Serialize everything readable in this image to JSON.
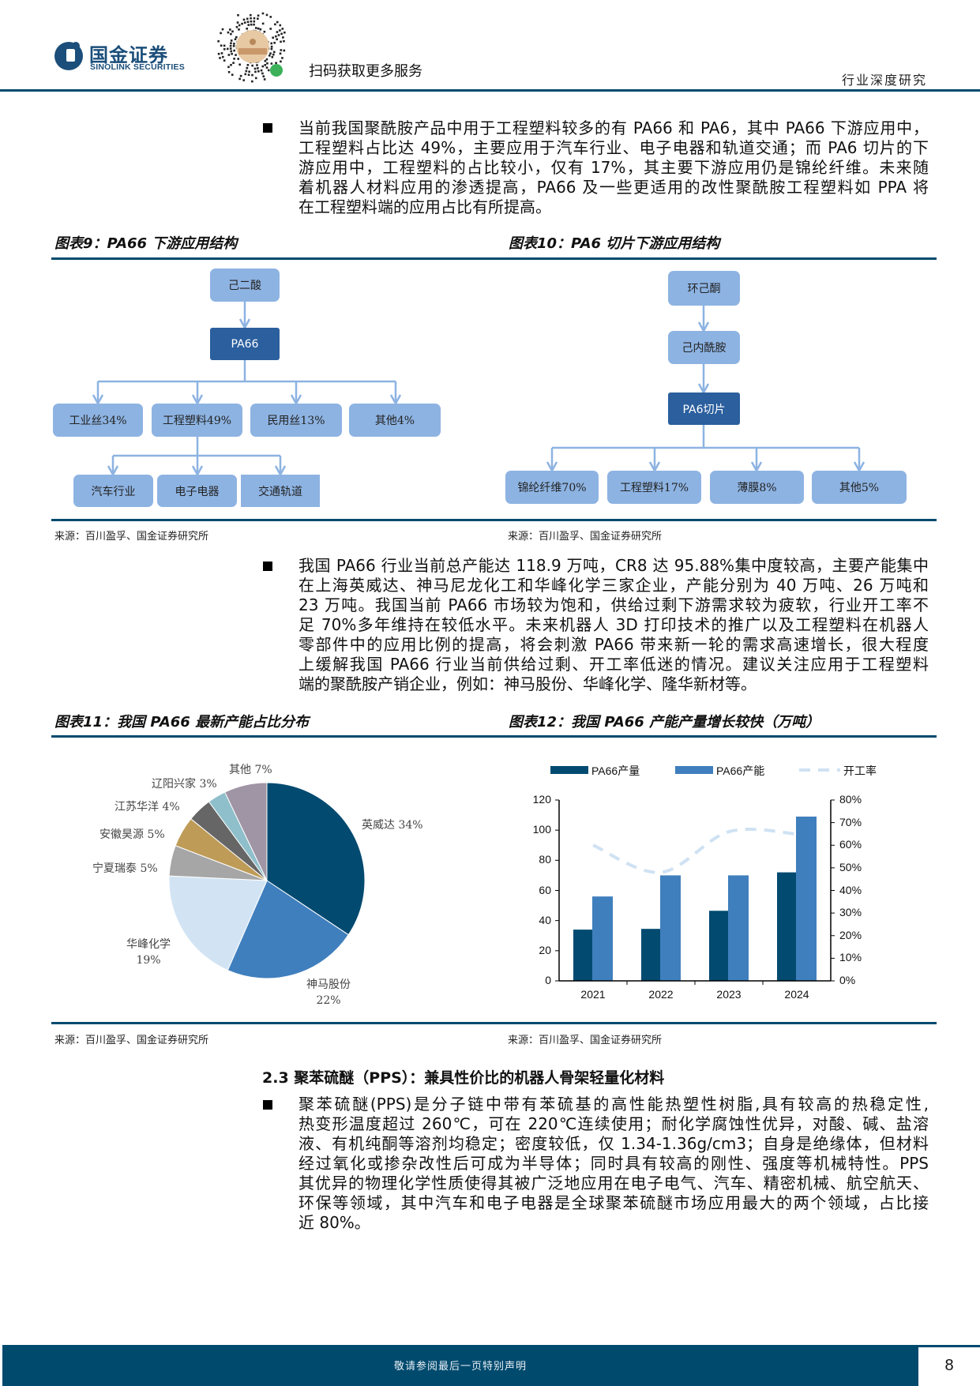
{
  "header": {
    "brand_cn": "国金证券",
    "brand_en": "SINOLINK SECURITIES",
    "qr_caption": "扫码获取更多服务",
    "report_type": "行业深度研究",
    "brand_color": "#004a6e",
    "logo_icon": "sinolink-logo",
    "qr_icon": "qr-code"
  },
  "bullet1": {
    "lines": [
      "当前我国聚酰胺产品中用于工程塑料较多的有 PA66 和 PA6，其中 PA66 下游应用中，",
      "工程塑料占比达 49%，主要应用于汽车行业、电子电器和轨道交通；而 PA6 切片的下",
      "游应用中，工程塑料的占比较小，仅有 17%，其主要下游应用仍是锦纶纤维。未来随",
      "着机器人材料应用的渗透提高，PA66 及一些更适用的改性聚酰胺工程塑料如 PPA 将",
      "在工程塑料端的应用占比有所提高。"
    ]
  },
  "fig9": {
    "title": "图表9：PA66 下游应用结构",
    "source": "来源：百川盈孚、国金证券研究所",
    "root": "己二酸",
    "main": "PA66",
    "children": [
      "工业丝34%",
      "工程塑料49%",
      "民用丝13%",
      "其他4%"
    ],
    "sub": [
      "汽车行业",
      "电子电器",
      "交通轨道"
    ]
  },
  "fig10": {
    "title": "图表10：PA6 切片下游应用结构",
    "source": "来源：百川盈孚、国金证券研究所",
    "root": "环己酮",
    "mid": "己内酰胺",
    "main": "PA6切片",
    "children": [
      "锦纶纤维70%",
      "工程塑料17%",
      "薄膜8%",
      "其他5%"
    ]
  },
  "bullet2": {
    "lines": [
      "我国 PA66 行业当前总产能达 118.9 万吨，CR8 达 95.88%集中度较高，主要产能集中",
      "在上海英威达、神马尼龙化工和华峰化学三家企业，产能分别为 40 万吨、26 万吨和",
      "23 万吨。我国当前 PA66 市场较为饱和，供给过剩下游需求较为疲软，行业开工率不",
      "足 70%多年维持在较低水平。未来机器人 3D 打印技术的推广以及工程塑料在机器人",
      "零部件中的应用比例的提高，将会刺激 PA66 带来新一轮的需求高速增长，很大程度",
      "上缓解我国 PA66 行业当前供给过剩、开工率低迷的情况。建议关注应用于工程塑料",
      "端的聚酰胺产销企业，例如：神马股份、华峰化学、隆华新材等。"
    ]
  },
  "fig11": {
    "title": "图表11：我国 PA66 最新产能占比分布",
    "source": "来源：百川盈孚、国金证券研究所"
  },
  "fig12": {
    "title": "图表12：我国 PA66 产能产量增长较快（万吨）",
    "source": "来源：百川盈孚、国金证券研究所"
  },
  "chart_data": [
    {
      "type": "pie",
      "slices": [
        {
          "name": "英威达",
          "label": "英威达 34%",
          "value": 34,
          "color": "#034a70"
        },
        {
          "name": "神马股份",
          "label": "神马股份",
          "pct_label": "22%",
          "value": 22,
          "color": "#407fbd"
        },
        {
          "name": "华峰化学",
          "label": "华峰化学",
          "pct_label": "19%",
          "value": 19,
          "color": "#d2e4f4"
        },
        {
          "name": "宁夏瑞泰",
          "label": "宁夏瑞泰 5%",
          "value": 5,
          "color": "#a6a6a6"
        },
        {
          "name": "安徽昊源",
          "label": "安徽昊源 5%",
          "value": 5,
          "color": "#be9b57"
        },
        {
          "name": "江苏华洋",
          "label": "江苏华洋 4%",
          "value": 4,
          "color": "#666666"
        },
        {
          "name": "辽阳兴家",
          "label": "辽阳兴家 3%",
          "value": 3,
          "color": "#8fbfca"
        },
        {
          "name": "其他",
          "label": "其他 7%",
          "value": 7,
          "color": "#a095a5"
        }
      ],
      "start": "12 o'clock, clockwise"
    },
    {
      "type": "bar",
      "categories": [
        "2021",
        "2022",
        "2023",
        "2024"
      ],
      "series": [
        {
          "name": "PA66产量",
          "kind": "bar",
          "axis": "left",
          "values": [
            34,
            34.5,
            46.5,
            72
          ],
          "color": "#034a70"
        },
        {
          "name": "PA66产能",
          "kind": "bar",
          "axis": "left",
          "values": [
            56,
            70,
            70,
            109
          ],
          "color": "#407fbd"
        },
        {
          "name": "开工率",
          "kind": "line-dashed",
          "axis": "right",
          "values": [
            60,
            48,
            66,
            65
          ],
          "unit": "%",
          "color": "#cfe2f3"
        }
      ],
      "y_left": {
        "min": 0,
        "max": 120,
        "ticks": [
          "0",
          "20",
          "40",
          "60",
          "80",
          "100",
          "120"
        ]
      },
      "y_right": {
        "min": 0,
        "max": 80,
        "ticks": [
          "0%",
          "10%",
          "20%",
          "30%",
          "40%",
          "50%",
          "60%",
          "70%",
          "80%"
        ]
      },
      "legend": "top",
      "grid": false
    }
  ],
  "section": {
    "heading": "2.3 聚苯硫醚（PPS）：兼具性价比的机器人骨架轻量化材料"
  },
  "bullet3": {
    "lines": [
      "聚苯硫醚(PPS)是分子链中带有苯硫基的高性能热塑性树脂,具有较高的热稳定性,",
      "热变形温度超过 260℃，可在 220℃连续使用；耐化学腐蚀性优异，对酸、碱、盐溶",
      "液、有机纯酮等溶剂均稳定；密度较低，仅 1.34-1.36g/cm3；自身是绝缘体，但材料",
      "经过氧化或掺杂改性后可成为半导体；同时具有较高的刚性、强度等机械特性。PPS",
      "其优异的物理化学性质使得其被广泛地应用在电子电气、汽车、精密机械、航空航天、",
      "环保等领域，其中汽车和电子电器是全球聚苯硫醚市场应用最大的两个领域，占比接",
      "近 80%。"
    ]
  },
  "footer": {
    "notice": "敬请参阅最后一页特别声明",
    "page": "8"
  }
}
